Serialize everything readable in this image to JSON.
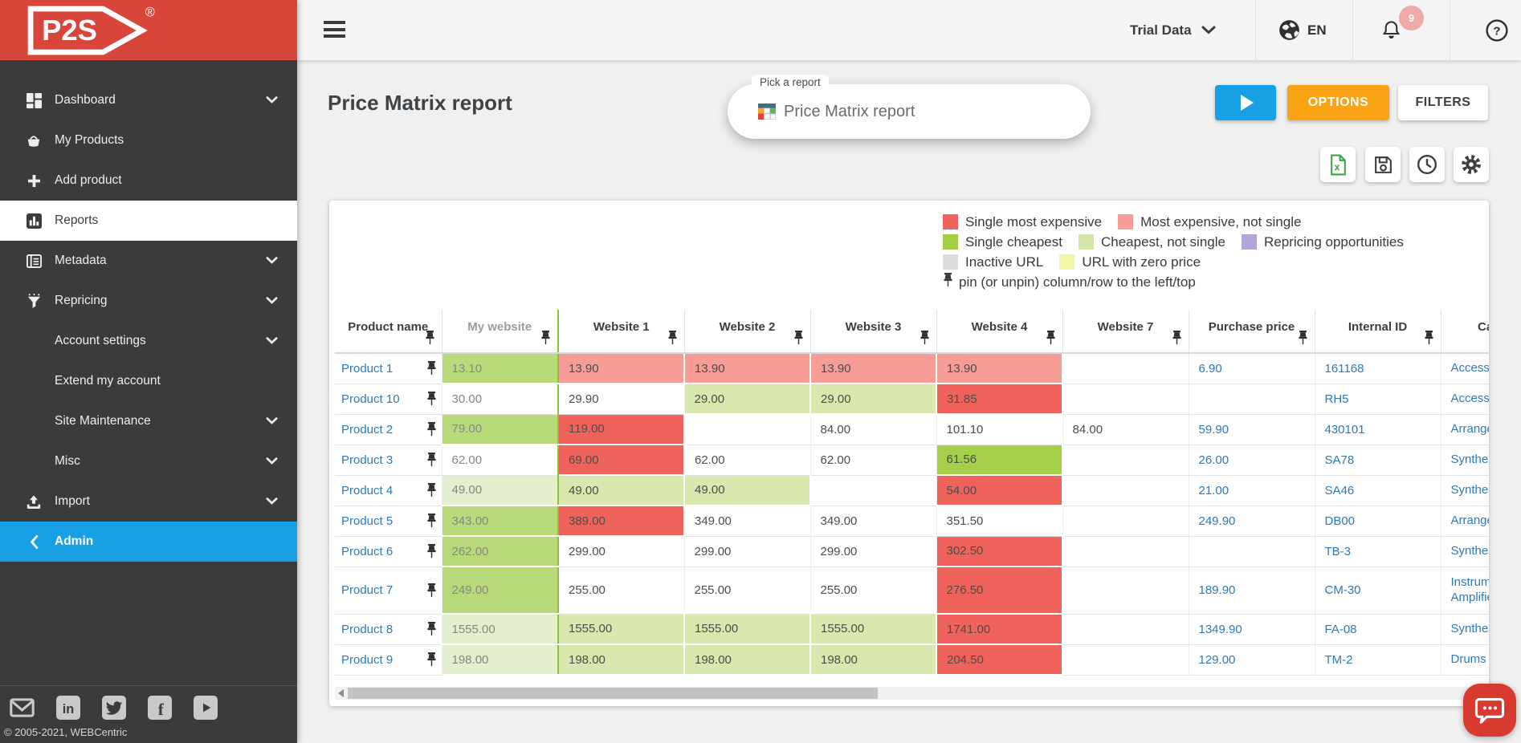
{
  "sidebar": {
    "logo": "P2S",
    "registered_mark": "®",
    "items": [
      {
        "label": "Dashboard",
        "icon": "dashboard-icon",
        "chevron": true
      },
      {
        "label": "My Products",
        "icon": "basket-icon",
        "chevron": false
      },
      {
        "label": "Add product",
        "icon": "plus-icon",
        "chevron": false
      },
      {
        "label": "Reports",
        "icon": "bar-chart-icon",
        "chevron": false,
        "active": true
      },
      {
        "label": "Metadata",
        "icon": "list-icon",
        "chevron": true
      },
      {
        "label": "Repricing",
        "icon": "funnel-icon",
        "chevron": true
      },
      {
        "label": "Account settings",
        "icon": "",
        "chevron": true
      },
      {
        "label": "Extend my account",
        "icon": "",
        "chevron": false
      },
      {
        "label": "Site Maintenance",
        "icon": "",
        "chevron": true
      },
      {
        "label": "Misc",
        "icon": "",
        "chevron": true
      },
      {
        "label": "Import",
        "icon": "upload-icon",
        "chevron": true
      },
      {
        "label": "Admin",
        "icon": "chevron-left-icon",
        "chevron": false,
        "admin": true
      }
    ],
    "social": [
      "email",
      "linkedin",
      "twitter",
      "facebook",
      "youtube"
    ],
    "copyright": "© 2005-2021, WEBCentric"
  },
  "topbar": {
    "account_name": "Trial Data",
    "language": "EN",
    "notification_count": "9"
  },
  "header": {
    "page_title": "Price Matrix report",
    "report_picker": {
      "label": "Pick a report",
      "value": "Price Matrix report"
    },
    "options_label": "OPTIONS",
    "filters_label": "FILTERS"
  },
  "legend": {
    "rows": [
      [
        {
          "color": "#f0625c",
          "label": "Single most expensive"
        },
        {
          "color": "#f79d98",
          "label": "Most expensive, not single"
        }
      ],
      [
        {
          "color": "#a2cd44",
          "label": "Single cheapest"
        },
        {
          "color": "#d5e5a8",
          "label": "Cheapest, not single"
        },
        {
          "color": "#b3a5d8",
          "label": "Repricing opportunities"
        }
      ],
      [
        {
          "color": "#dcdcdc",
          "label": "Inactive URL"
        },
        {
          "color": "#f1f5a6",
          "label": "URL with zero price"
        }
      ]
    ],
    "pin_note": "pin (or unpin) column/row to the left/top"
  },
  "table": {
    "columns": [
      "Product name",
      "My website",
      "Website 1",
      "Website 2",
      "Website 3",
      "Website 4",
      "Website 7",
      "Purchase price",
      "Internal ID",
      "Category"
    ],
    "rows": [
      {
        "name": "Product 1",
        "prices": [
          {
            "t": "13.10",
            "s": "mw-green"
          },
          {
            "t": "13.90",
            "s": "pink"
          },
          {
            "t": "13.90",
            "s": "pink"
          },
          {
            "t": "13.90",
            "s": "pink"
          },
          {
            "t": "13.90",
            "s": "pink"
          },
          {
            "t": "",
            "s": ""
          }
        ],
        "purchase": "6.90",
        "id": "161168",
        "category": "Access"
      },
      {
        "name": "Product 10",
        "prices": [
          {
            "t": "30.00",
            "s": ""
          },
          {
            "t": "29.90",
            "s": ""
          },
          {
            "t": "29.00",
            "s": "lgreen"
          },
          {
            "t": "29.00",
            "s": "lgreen"
          },
          {
            "t": "31.85",
            "s": "red"
          },
          {
            "t": "",
            "s": ""
          }
        ],
        "purchase": "",
        "id": "RH5",
        "category": "Access"
      },
      {
        "name": "Product 2",
        "prices": [
          {
            "t": "79.00",
            "s": "mw-green"
          },
          {
            "t": "119.00",
            "s": "red"
          },
          {
            "t": "",
            "s": ""
          },
          {
            "t": "84.00",
            "s": ""
          },
          {
            "t": "101.10",
            "s": ""
          },
          {
            "t": "84.00",
            "s": ""
          }
        ],
        "purchase": "59.90",
        "id": "430101",
        "category": "Arrange"
      },
      {
        "name": "Product 3",
        "prices": [
          {
            "t": "62.00",
            "s": ""
          },
          {
            "t": "69.00",
            "s": "red"
          },
          {
            "t": "62.00",
            "s": ""
          },
          {
            "t": "62.00",
            "s": ""
          },
          {
            "t": "61.56",
            "s": "green"
          },
          {
            "t": "",
            "s": ""
          }
        ],
        "purchase": "26.00",
        "id": "SA78",
        "category": "Synthes"
      },
      {
        "name": "Product 4",
        "prices": [
          {
            "t": "49.00",
            "s": "mw-lgreen"
          },
          {
            "t": "49.00",
            "s": "lgreen"
          },
          {
            "t": "49.00",
            "s": "lgreen"
          },
          {
            "t": "",
            "s": ""
          },
          {
            "t": "54.00",
            "s": "red"
          },
          {
            "t": "",
            "s": ""
          }
        ],
        "purchase": "21.00",
        "id": "SA46",
        "category": "Synthes"
      },
      {
        "name": "Product 5",
        "prices": [
          {
            "t": "343.00",
            "s": "mw-green"
          },
          {
            "t": "389.00",
            "s": "red"
          },
          {
            "t": "349.00",
            "s": ""
          },
          {
            "t": "349.00",
            "s": ""
          },
          {
            "t": "351.50",
            "s": ""
          },
          {
            "t": "",
            "s": ""
          }
        ],
        "purchase": "249.90",
        "id": "DB00",
        "category": "Arrange"
      },
      {
        "name": "Product 6",
        "prices": [
          {
            "t": "262.00",
            "s": "mw-green"
          },
          {
            "t": "299.00",
            "s": ""
          },
          {
            "t": "299.00",
            "s": ""
          },
          {
            "t": "299.00",
            "s": ""
          },
          {
            "t": "302.50",
            "s": "red"
          },
          {
            "t": "",
            "s": ""
          }
        ],
        "purchase": "",
        "id": "TB-3",
        "category": "Synthes"
      },
      {
        "name": "Product 7",
        "tall": true,
        "prices": [
          {
            "t": "249.00",
            "s": "mw-green"
          },
          {
            "t": "255.00",
            "s": ""
          },
          {
            "t": "255.00",
            "s": ""
          },
          {
            "t": "255.00",
            "s": ""
          },
          {
            "t": "276.50",
            "s": "red"
          },
          {
            "t": "",
            "s": ""
          }
        ],
        "purchase": "189.90",
        "id": "CM-30",
        "category": "Instrum\nAmplifie"
      },
      {
        "name": "Product 8",
        "prices": [
          {
            "t": "1555.00",
            "s": "mw-lgreen"
          },
          {
            "t": "1555.00",
            "s": "lgreen"
          },
          {
            "t": "1555.00",
            "s": "lgreen"
          },
          {
            "t": "1555.00",
            "s": "lgreen"
          },
          {
            "t": "1741.00",
            "s": "red"
          },
          {
            "t": "",
            "s": ""
          }
        ],
        "purchase": "1349.90",
        "id": "FA-08",
        "category": "Synthes"
      },
      {
        "name": "Product 9",
        "prices": [
          {
            "t": "198.00",
            "s": "mw-lgreen"
          },
          {
            "t": "198.00",
            "s": "lgreen"
          },
          {
            "t": "198.00",
            "s": "lgreen"
          },
          {
            "t": "198.00",
            "s": "lgreen"
          },
          {
            "t": "204.50",
            "s": "red"
          },
          {
            "t": "",
            "s": ""
          }
        ],
        "purchase": "129.00",
        "id": "TM-2",
        "category": "Drums &"
      }
    ]
  }
}
